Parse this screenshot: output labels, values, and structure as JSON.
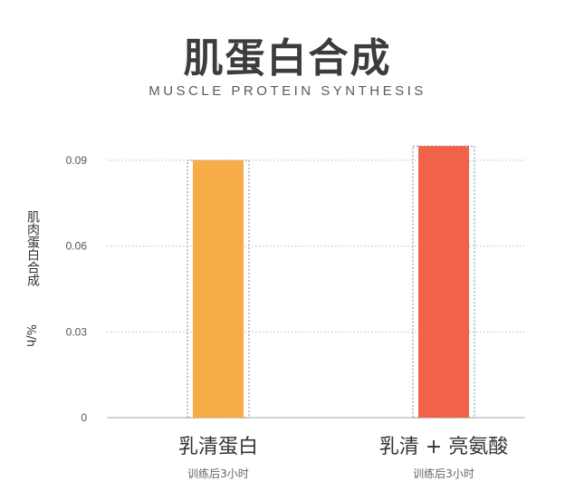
{
  "chart_data": {
    "type": "bar",
    "title": "肌蛋白合成",
    "subtitle": "MUSCLE PROTEIN SYNTHESIS",
    "ylabel": "肌肉蛋白合成",
    "ylabel_unit": "%/h",
    "ylim": [
      0,
      0.09
    ],
    "yticks": [
      "0",
      "0.03",
      "0.06",
      "0.09"
    ],
    "ytick_values": [
      0,
      0.03,
      0.06,
      0.09
    ],
    "grid": true,
    "categories": [
      "乳清蛋白",
      "乳清 + 亮氨酸"
    ],
    "category_notes": [
      "训练后3小时",
      "训练后3小时"
    ],
    "values": [
      0.09,
      0.095
    ],
    "colors": [
      "#f7ac47",
      "#f0634a"
    ]
  }
}
